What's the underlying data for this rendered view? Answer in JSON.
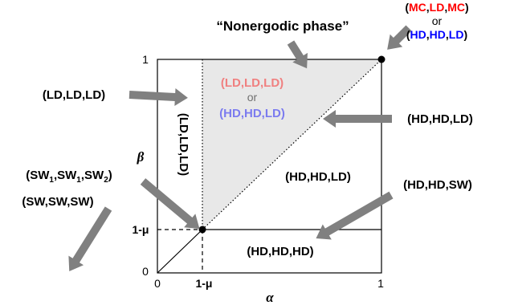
{
  "title": "“Nonergodic phase”",
  "axes": {
    "x_label": "α",
    "y_label": "β",
    "x_ticks": {
      "zero": "0",
      "mu": "1-μ",
      "one": "1"
    },
    "y_ticks": {
      "zero": "0",
      "mu": "1-μ",
      "one": "1"
    }
  },
  "colors": {
    "red": "#ff0000",
    "blue": "#0000ff",
    "light_red": "#f08080",
    "light_blue": "#7b7bef",
    "gray": "#808080",
    "shade": "#e8e8e8"
  },
  "top_right_label": {
    "line1": {
      "open": "(",
      "a": "MC",
      "c1": ",",
      "b": "LD",
      "c2": ",",
      "c": "MC",
      "close": ")"
    },
    "or": "or",
    "line2": {
      "open": "(",
      "a": "HD",
      "c1": ",",
      "b": "HD",
      "c2": ",",
      "c": "LD",
      "close": ")"
    }
  },
  "shaded_region": {
    "line1": "(LD,LD,LD)",
    "or": "or",
    "line2": "(HD,HD,LD)"
  },
  "labels": {
    "left_top": "(LD,LD,LD)",
    "vertical_strip": "(LD,LD,LD)",
    "right_mid": "(HD,HD,LD)",
    "central": "(HD,HD,LD)",
    "right_lower": "(HD,HD,SW)",
    "bottom_region": "(HD,HD,HD)",
    "sw_mixed": {
      "open": "(SW",
      "sub1": "1",
      "mid": ",SW",
      "sub2": "1",
      "mid2": ",SW",
      "sub3": "2",
      "close": ")"
    },
    "sw_all": "(SW,SW,SW)"
  }
}
